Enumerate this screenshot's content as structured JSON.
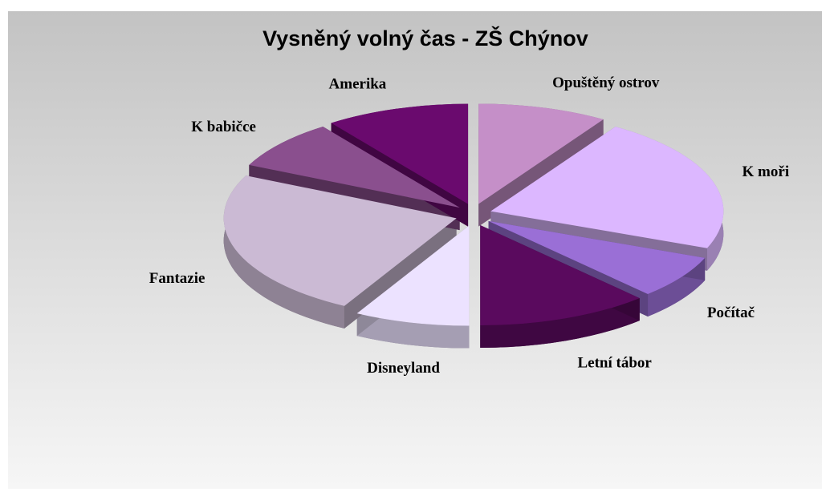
{
  "chart_data": {
    "type": "pie",
    "title": "Vysněný volný čas - ZŠ Chýnov",
    "categories": [
      "Opuštěný ostrov",
      "K moři",
      "Počítač",
      "Letní tábor",
      "Disneyland",
      "Fantazie",
      "K babičce",
      "Amerika"
    ],
    "values": [
      9,
      22,
      7,
      12,
      8,
      24,
      8,
      10
    ],
    "colors": [
      "#c58fc8",
      "#dcb7ff",
      "#9a6fd6",
      "#5a0a5e",
      "#ece2ff",
      "#cbbad4",
      "#8a4f8e",
      "#6a0a6e"
    ]
  }
}
